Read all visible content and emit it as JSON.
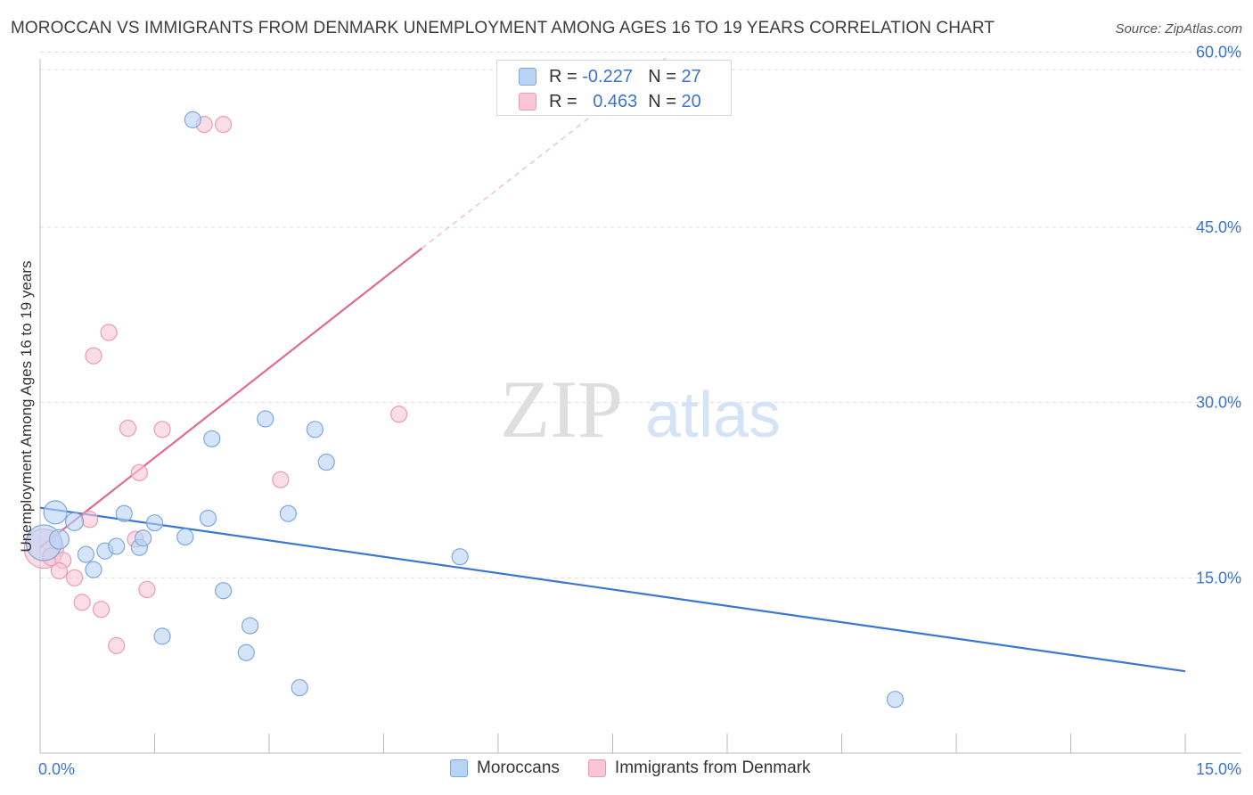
{
  "title": "MOROCCAN VS IMMIGRANTS FROM DENMARK UNEMPLOYMENT AMONG AGES 16 TO 19 YEARS CORRELATION CHART",
  "source": "Source: ZipAtlas.com",
  "watermark": {
    "zip": "ZIP",
    "atlas": "atlas"
  },
  "legend": {
    "rows": [
      {
        "r_label": "R =",
        "r_value": "-0.227",
        "n_label": "N =",
        "n_value": "27"
      },
      {
        "r_label": "R =",
        "r_value": "0.463",
        "n_label": "N =",
        "n_value": "20"
      }
    ]
  },
  "bottom_legend": {
    "series1": "Moroccans",
    "series2": "Immigrants from Denmark"
  },
  "chart_data": {
    "type": "scatter",
    "title": "MOROCCAN VS IMMIGRANTS FROM DENMARK UNEMPLOYMENT AMONG AGES 16 TO 19 YEARS CORRELATION CHART",
    "xlabel": "",
    "ylabel": "Unemployment Among Ages 16 to 19 years",
    "xlim": [
      0,
      15
    ],
    "ylim": [
      0,
      60
    ],
    "x_tick_labels": [
      "0.0%",
      "15.0%"
    ],
    "y_ticks": [
      15,
      30,
      45,
      60
    ],
    "y_tick_labels": [
      "15.0%",
      "30.0%",
      "45.0%",
      "60.0%"
    ],
    "grid": true,
    "legend_position": "top-center",
    "colors": {
      "moroccans_fill": "#b9d3f5",
      "moroccans_stroke": "#7fa8de",
      "moroccans_line": "#3a76d2",
      "denmark_fill": "#f9c6d6",
      "denmark_stroke": "#ec9ab5",
      "denmark_line": "#e06b94",
      "tick_label": "#3a74d0",
      "grid": "#dcdcdc"
    },
    "series": [
      {
        "name": "Moroccans",
        "points": [
          [
            0.05,
            18.0
          ],
          [
            0.2,
            20.6
          ],
          [
            0.25,
            18.3
          ],
          [
            0.45,
            19.8
          ],
          [
            0.6,
            17.0
          ],
          [
            0.7,
            15.7
          ],
          [
            0.85,
            17.3
          ],
          [
            1.0,
            17.7
          ],
          [
            1.1,
            20.5
          ],
          [
            1.3,
            17.6
          ],
          [
            1.35,
            18.4
          ],
          [
            1.5,
            19.7
          ],
          [
            1.6,
            10.0
          ],
          [
            1.9,
            18.5
          ],
          [
            2.0,
            54.2
          ],
          [
            2.2,
            20.1
          ],
          [
            2.25,
            26.9
          ],
          [
            2.4,
            13.9
          ],
          [
            2.7,
            8.6
          ],
          [
            2.75,
            10.9
          ],
          [
            2.95,
            28.6
          ],
          [
            3.25,
            20.5
          ],
          [
            3.4,
            5.6
          ],
          [
            3.6,
            27.7
          ],
          [
            3.75,
            24.9
          ],
          [
            5.5,
            16.8
          ],
          [
            11.2,
            4.6
          ]
        ],
        "sizes": [
          20,
          13,
          11,
          10,
          9,
          9,
          9,
          9,
          9,
          9,
          9,
          9,
          9,
          9,
          9,
          9,
          9,
          9,
          9,
          9,
          9,
          9,
          9,
          9,
          9,
          9,
          9
        ],
        "trend": {
          "x": [
            0.0,
            15.0
          ],
          "y": [
            21.0,
            7.0
          ]
        }
      },
      {
        "name": "Immigrants from Denmark",
        "points": [
          [
            0.05,
            17.5
          ],
          [
            0.15,
            16.8
          ],
          [
            0.3,
            16.5
          ],
          [
            0.25,
            15.6
          ],
          [
            0.45,
            15.0
          ],
          [
            0.55,
            12.9
          ],
          [
            0.65,
            20.0
          ],
          [
            0.7,
            34.0
          ],
          [
            0.8,
            12.3
          ],
          [
            0.9,
            36.0
          ],
          [
            1.0,
            9.2
          ],
          [
            1.15,
            27.8
          ],
          [
            1.25,
            18.3
          ],
          [
            1.3,
            24.0
          ],
          [
            1.4,
            14.0
          ],
          [
            1.6,
            27.7
          ],
          [
            2.15,
            53.8
          ],
          [
            2.4,
            53.8
          ],
          [
            3.15,
            23.4
          ],
          [
            4.7,
            29.0
          ]
        ],
        "sizes": [
          22,
          10,
          9,
          9,
          9,
          9,
          9,
          9,
          9,
          9,
          9,
          9,
          9,
          9,
          9,
          9,
          9,
          9,
          9,
          9
        ],
        "trend": {
          "x": [
            0.0,
            5.0
          ],
          "y": [
            17.6,
            43.2
          ],
          "dashed_extension": {
            "x": [
              5.0,
              8.2
            ],
            "y": [
              43.2,
              59.5
            ]
          }
        }
      }
    ]
  }
}
